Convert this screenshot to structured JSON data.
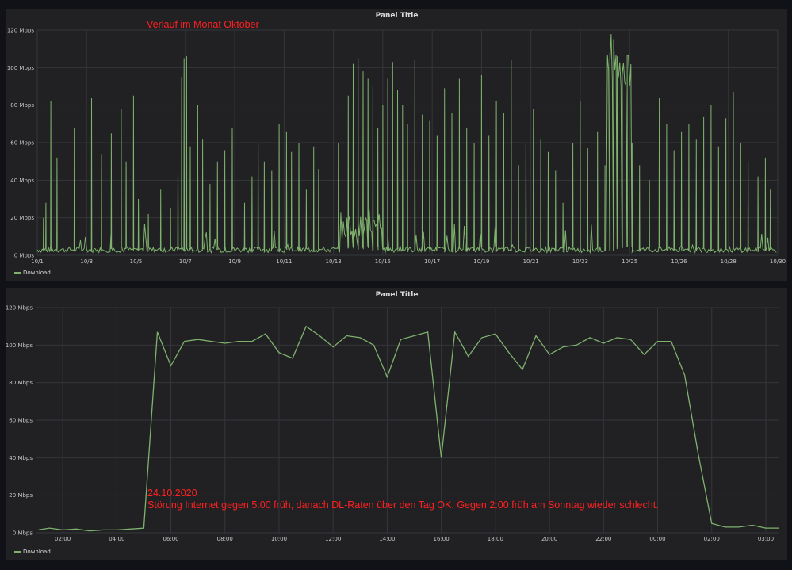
{
  "panels": [
    {
      "title": "Panel Title",
      "legend": "Download"
    },
    {
      "title": "Panel Title",
      "legend": "Download"
    }
  ],
  "annotations": {
    "month": "Verlauf im Monat Oktober",
    "day_date": "24.10.2020",
    "day_text": "Störung Internet gegen 5:00 früh, danach DL-Raten über den Tag OK. Gegen 2:00 früh am Sonntag wieder schlecht."
  },
  "chart_data": [
    {
      "type": "line",
      "title": "Panel Title",
      "series_color": "#7eb26d",
      "ylim": [
        0,
        120
      ],
      "y_ticks": [
        "0 Mbps",
        "20 Mbps",
        "40 Mbps",
        "60 Mbps",
        "80 Mbps",
        "100 Mbps",
        "120 Mbps"
      ],
      "x_ticks": [
        "10/1",
        "10/3",
        "10/5",
        "10/7",
        "10/9",
        "10/11",
        "10/13",
        "10/15",
        "10/17",
        "10/19",
        "10/21",
        "10/23",
        "10/25",
        "10/26",
        "10/28",
        "10/30"
      ],
      "x_range_days": [
        1,
        31
      ],
      "series": [
        {
          "name": "Download",
          "spikes": [
            [
              1.25,
              20
            ],
            [
              1.35,
              28
            ],
            [
              1.55,
              82
            ],
            [
              1.8,
              52
            ],
            [
              2.5,
              68
            ],
            [
              3.2,
              84
            ],
            [
              3.6,
              54
            ],
            [
              4.0,
              65
            ],
            [
              4.4,
              78
            ],
            [
              4.6,
              50
            ],
            [
              4.9,
              85
            ],
            [
              5.1,
              30
            ],
            [
              5.5,
              22
            ],
            [
              6.0,
              35
            ],
            [
              6.4,
              25
            ],
            [
              6.7,
              45
            ],
            [
              6.85,
              95
            ],
            [
              6.95,
              105
            ],
            [
              7.05,
              106
            ],
            [
              7.2,
              58
            ],
            [
              7.5,
              80
            ],
            [
              7.7,
              62
            ],
            [
              8.0,
              38
            ],
            [
              8.3,
              50
            ],
            [
              8.6,
              56
            ],
            [
              8.9,
              68
            ],
            [
              9.4,
              28
            ],
            [
              9.7,
              42
            ],
            [
              9.95,
              60
            ],
            [
              10.2,
              50
            ],
            [
              10.5,
              45
            ],
            [
              10.8,
              70
            ],
            [
              11.1,
              66
            ],
            [
              11.3,
              55
            ],
            [
              11.6,
              60
            ],
            [
              11.9,
              35
            ],
            [
              12.2,
              58
            ],
            [
              12.4,
              46
            ],
            [
              13.2,
              60
            ],
            [
              13.6,
              85
            ],
            [
              13.8,
              102
            ],
            [
              14.0,
              105
            ],
            [
              14.2,
              98
            ],
            [
              14.4,
              94
            ],
            [
              14.6,
              90
            ],
            [
              14.8,
              68
            ],
            [
              15.0,
              80
            ],
            [
              15.2,
              94
            ],
            [
              15.4,
              103
            ],
            [
              15.6,
              88
            ],
            [
              15.8,
              80
            ],
            [
              16.0,
              70
            ],
            [
              16.3,
              104
            ],
            [
              16.6,
              75
            ],
            [
              16.9,
              72
            ],
            [
              17.2,
              64
            ],
            [
              17.5,
              89
            ],
            [
              17.8,
              76
            ],
            [
              18.1,
              94
            ],
            [
              18.4,
              68
            ],
            [
              18.7,
              60
            ],
            [
              19.0,
              96
            ],
            [
              19.3,
              64
            ],
            [
              19.6,
              82
            ],
            [
              19.9,
              76
            ],
            [
              20.2,
              104
            ],
            [
              20.5,
              48
            ],
            [
              20.8,
              60
            ],
            [
              21.1,
              78
            ],
            [
              21.4,
              62
            ],
            [
              21.7,
              55
            ],
            [
              22.0,
              45
            ],
            [
              22.3,
              28
            ],
            [
              22.7,
              60
            ],
            [
              23.0,
              82
            ],
            [
              23.3,
              57
            ],
            [
              23.7,
              66
            ],
            [
              24.0,
              48
            ],
            [
              24.2,
              108
            ],
            [
              24.35,
              110
            ],
            [
              24.5,
              106
            ],
            [
              24.7,
              100
            ],
            [
              24.9,
              86
            ],
            [
              25.1,
              60
            ],
            [
              25.4,
              48
            ],
            [
              25.8,
              40
            ],
            [
              26.2,
              84
            ],
            [
              26.5,
              70
            ],
            [
              26.8,
              56
            ],
            [
              27.1,
              66
            ],
            [
              27.4,
              70
            ],
            [
              27.7,
              62
            ],
            [
              28.0,
              74
            ],
            [
              28.3,
              80
            ],
            [
              28.6,
              58
            ],
            [
              28.9,
              73
            ],
            [
              29.2,
              87
            ],
            [
              29.5,
              60
            ],
            [
              29.8,
              50
            ],
            [
              30.2,
              42
            ],
            [
              30.5,
              52
            ],
            [
              30.7,
              35
            ]
          ]
        }
      ]
    },
    {
      "type": "line",
      "title": "Panel Title",
      "series_color": "#7eb26d",
      "ylim": [
        0,
        120
      ],
      "y_ticks": [
        "0 Mbps",
        "20 Mbps",
        "40 Mbps",
        "60 Mbps",
        "80 Mbps",
        "100 Mbps",
        "120 Mbps"
      ],
      "x_ticks": [
        "02:00",
        "04:00",
        "06:00",
        "08:00",
        "10:00",
        "12:00",
        "14:00",
        "16:00",
        "18:00",
        "20:00",
        "22:00",
        "00:00",
        "02:00",
        "03:00"
      ],
      "x_range_hours": [
        1.0,
        28.5
      ],
      "series": [
        {
          "name": "Download",
          "points": [
            [
              1.1,
              1.5
            ],
            [
              1.5,
              2.5
            ],
            [
              2.0,
              1.5
            ],
            [
              2.5,
              2
            ],
            [
              3.0,
              1
            ],
            [
              3.5,
              1.5
            ],
            [
              4.0,
              1.5
            ],
            [
              4.5,
              2
            ],
            [
              5.0,
              2.5
            ],
            [
              5.5,
              107
            ],
            [
              6.0,
              89
            ],
            [
              6.5,
              102
            ],
            [
              7.0,
              103
            ],
            [
              7.5,
              102
            ],
            [
              8.0,
              101
            ],
            [
              8.5,
              102
            ],
            [
              9.0,
              102
            ],
            [
              9.5,
              106
            ],
            [
              10.0,
              96
            ],
            [
              10.5,
              93
            ],
            [
              11.0,
              110
            ],
            [
              11.5,
              105
            ],
            [
              12.0,
              99
            ],
            [
              12.5,
              105
            ],
            [
              13.0,
              104
            ],
            [
              13.5,
              100
            ],
            [
              14.0,
              83
            ],
            [
              14.5,
              103
            ],
            [
              15.0,
              105
            ],
            [
              15.5,
              107
            ],
            [
              16.0,
              40
            ],
            [
              16.5,
              107
            ],
            [
              17.0,
              94
            ],
            [
              17.5,
              104
            ],
            [
              18.0,
              106
            ],
            [
              18.5,
              96
            ],
            [
              19.0,
              87
            ],
            [
              19.5,
              105
            ],
            [
              20.0,
              95
            ],
            [
              20.5,
              99
            ],
            [
              21.0,
              100
            ],
            [
              21.5,
              104
            ],
            [
              22.0,
              101
            ],
            [
              22.5,
              104
            ],
            [
              23.0,
              103
            ],
            [
              23.5,
              95
            ],
            [
              24.0,
              102
            ],
            [
              24.5,
              102
            ],
            [
              25.0,
              84
            ],
            [
              25.5,
              42
            ],
            [
              26.0,
              5
            ],
            [
              26.5,
              3
            ],
            [
              27.0,
              3
            ],
            [
              27.5,
              4
            ],
            [
              28.0,
              2.5
            ],
            [
              28.5,
              2.5
            ]
          ]
        }
      ]
    }
  ]
}
